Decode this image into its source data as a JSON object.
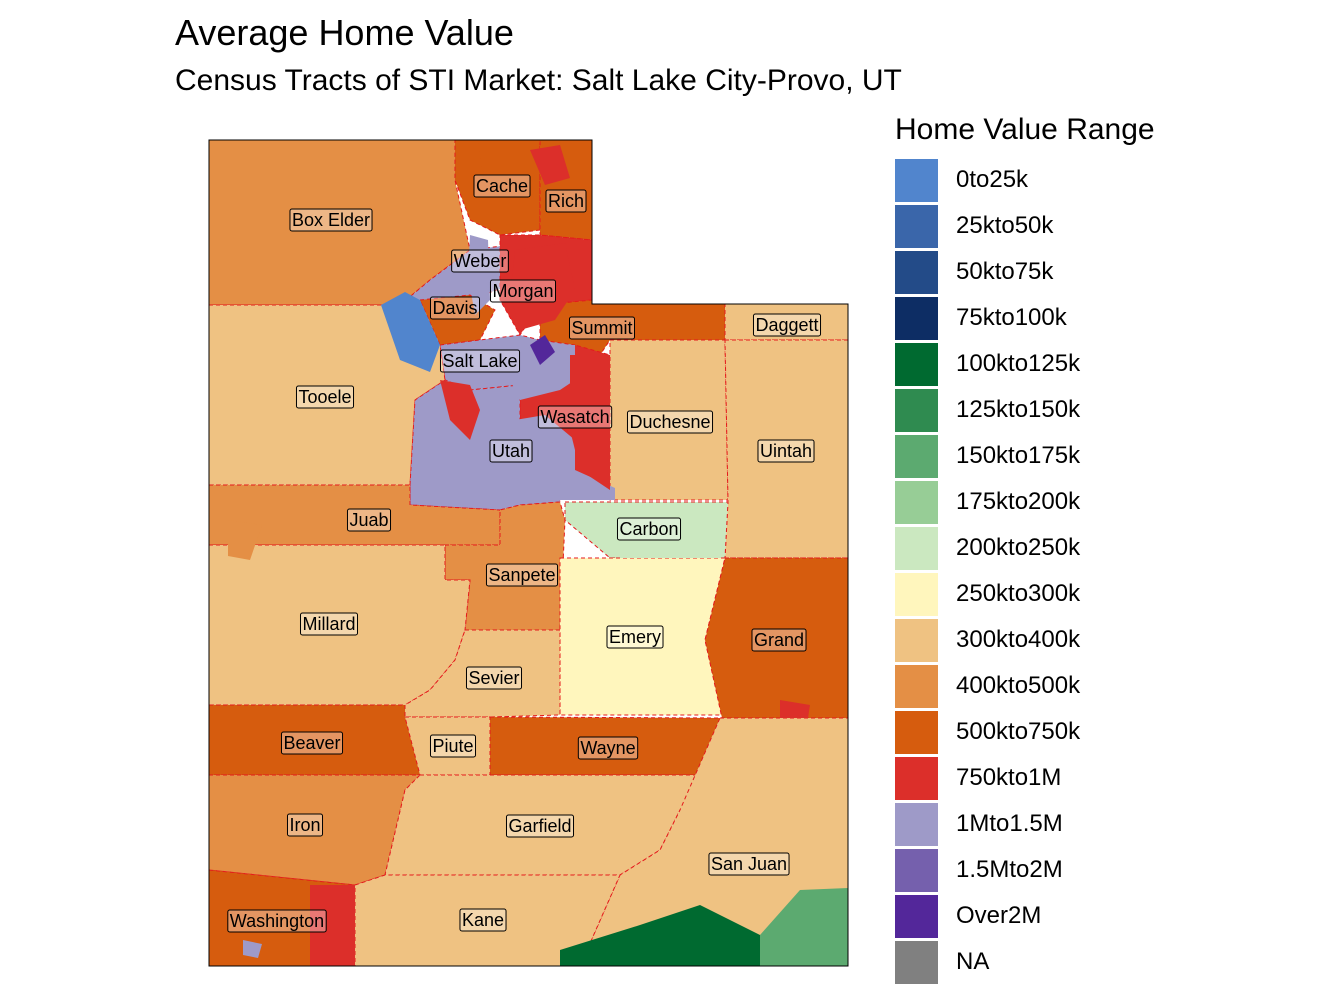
{
  "title": "Average Home Value",
  "subtitle": "Census Tracts of STI Market: Salt Lake City-Provo, UT",
  "legend": {
    "title": "Home Value Range",
    "items": [
      {
        "label": "0to25k",
        "color": "#5185cd"
      },
      {
        "label": "25kto50k",
        "color": "#3a66aa"
      },
      {
        "label": "50kto75k",
        "color": "#234b88"
      },
      {
        "label": "75kto100k",
        "color": "#0d2d64"
      },
      {
        "label": "100kto125k",
        "color": "#006a30"
      },
      {
        "label": "125kto150k",
        "color": "#2f8b50"
      },
      {
        "label": "150kto175k",
        "color": "#5caa70"
      },
      {
        "label": "175kto200k",
        "color": "#97cd96"
      },
      {
        "label": "200kto250k",
        "color": "#cbe8c0"
      },
      {
        "label": "250kto300k",
        "color": "#fff6bd"
      },
      {
        "label": "300kto400k",
        "color": "#efc282"
      },
      {
        "label": "400kto500k",
        "color": "#e48f45"
      },
      {
        "label": "500kto750k",
        "color": "#d65c0e"
      },
      {
        "label": "750kto1M",
        "color": "#dc2f2a"
      },
      {
        "label": "1Mto1.5M",
        "color": "#9e9ac8"
      },
      {
        "label": "1.5Mto2M",
        "color": "#7560ad"
      },
      {
        "label": "Over2M",
        "color": "#53279a"
      },
      {
        "label": "NA",
        "color": "#808080"
      }
    ]
  },
  "counties": [
    {
      "name": "Box Elder",
      "range": "400kto500k"
    },
    {
      "name": "Cache",
      "range": "500kto750k"
    },
    {
      "name": "Rich",
      "range": "500kto750k"
    },
    {
      "name": "Weber",
      "range": "1Mto1.5M"
    },
    {
      "name": "Morgan",
      "range": "750kto1M"
    },
    {
      "name": "Davis",
      "range": "500kto750k"
    },
    {
      "name": "Summit",
      "range": "500kto750k"
    },
    {
      "name": "Daggett",
      "range": "300kto400k"
    },
    {
      "name": "Salt Lake",
      "range": "1Mto1.5M"
    },
    {
      "name": "Tooele",
      "range": "300kto400k"
    },
    {
      "name": "Wasatch",
      "range": "750kto1M"
    },
    {
      "name": "Duchesne",
      "range": "300kto400k"
    },
    {
      "name": "Utah",
      "range": "1Mto1.5M"
    },
    {
      "name": "Uintah",
      "range": "300kto400k"
    },
    {
      "name": "Juab",
      "range": "400kto500k"
    },
    {
      "name": "Carbon",
      "range": "200kto250k"
    },
    {
      "name": "Sanpete",
      "range": "400kto500k"
    },
    {
      "name": "Millard",
      "range": "300kto400k"
    },
    {
      "name": "Emery",
      "range": "250kto300k"
    },
    {
      "name": "Grand",
      "range": "500kto750k"
    },
    {
      "name": "Sevier",
      "range": "300kto400k"
    },
    {
      "name": "Beaver",
      "range": "500kto750k"
    },
    {
      "name": "Piute",
      "range": "300kto400k"
    },
    {
      "name": "Wayne",
      "range": "500kto750k"
    },
    {
      "name": "Iron",
      "range": "400kto500k"
    },
    {
      "name": "Garfield",
      "range": "300kto400k"
    },
    {
      "name": "San Juan",
      "range": "300kto400k"
    },
    {
      "name": "Washington",
      "range": "500kto750k"
    },
    {
      "name": "Kane",
      "range": "300kto400k"
    }
  ]
}
